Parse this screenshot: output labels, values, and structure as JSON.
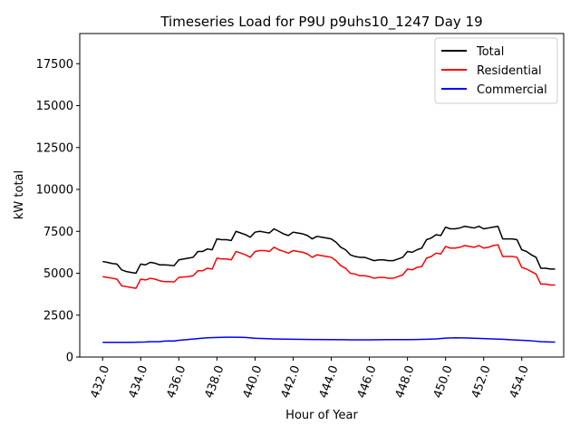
{
  "chart_data": {
    "type": "line",
    "title": "Timeseries Load for P9U p9uhs10_1247  Day 19",
    "xlabel": "Hour of Year",
    "ylabel": "kW total",
    "xlim": [
      430.8,
      456.2
    ],
    "ylim": [
      0,
      19300
    ],
    "xticks": [
      432,
      434,
      436,
      438,
      440,
      442,
      444,
      446,
      448,
      450,
      452,
      454
    ],
    "xtick_labels": [
      "432.0",
      "434.0",
      "436.0",
      "438.0",
      "440.0",
      "442.0",
      "444.0",
      "446.0",
      "448.0",
      "450.0",
      "452.0",
      "454.0"
    ],
    "yticks": [
      0,
      2500,
      5000,
      7500,
      10000,
      12500,
      15000,
      17500
    ],
    "ytick_labels": [
      "0",
      "2500",
      "5000",
      "7500",
      "10000",
      "12500",
      "15000",
      "17500"
    ],
    "legend_position": "top-right",
    "series": [
      {
        "name": "Total",
        "color": "#000000",
        "x": [
          432.0,
          432.25,
          432.5,
          432.75,
          433.0,
          433.25,
          433.5,
          433.75,
          434.0,
          434.25,
          434.5,
          434.75,
          435.0,
          435.25,
          435.5,
          435.75,
          436.0,
          436.25,
          436.5,
          436.75,
          437.0,
          437.25,
          437.5,
          437.75,
          438.0,
          438.25,
          438.5,
          438.75,
          439.0,
          439.25,
          439.5,
          439.75,
          440.0,
          440.25,
          440.5,
          440.75,
          441.0,
          441.25,
          441.5,
          441.75,
          442.0,
          442.25,
          442.5,
          442.75,
          443.0,
          443.25,
          443.5,
          443.75,
          444.0,
          444.25,
          444.5,
          444.75,
          445.0,
          445.25,
          445.5,
          445.75,
          446.0,
          446.25,
          446.5,
          446.75,
          447.0,
          447.25,
          447.5,
          447.75,
          448.0,
          448.25,
          448.5,
          448.75,
          449.0,
          449.25,
          449.5,
          449.75,
          450.0,
          450.25,
          450.5,
          450.75,
          451.0,
          451.25,
          451.5,
          451.75,
          452.0,
          452.25,
          452.5,
          452.75,
          453.0,
          453.25,
          453.5,
          453.75,
          454.0,
          454.25,
          454.5,
          454.75,
          455.0,
          455.25,
          455.5,
          455.75
        ],
        "values": [
          5700,
          5650,
          5580,
          5550,
          5200,
          5100,
          5050,
          5000,
          5550,
          5500,
          5650,
          5600,
          5500,
          5500,
          5480,
          5450,
          5800,
          5850,
          5900,
          5950,
          6300,
          6300,
          6450,
          6400,
          7050,
          7000,
          7000,
          6950,
          7500,
          7400,
          7300,
          7150,
          7450,
          7500,
          7450,
          7400,
          7650,
          7500,
          7350,
          7250,
          7450,
          7400,
          7350,
          7250,
          7050,
          7200,
          7150,
          7100,
          7050,
          6850,
          6550,
          6400,
          6100,
          6000,
          5950,
          5950,
          5850,
          5750,
          5800,
          5800,
          5750,
          5750,
          5850,
          5950,
          6300,
          6250,
          6400,
          6500,
          7000,
          7100,
          7300,
          7250,
          7750,
          7650,
          7650,
          7700,
          7800,
          7750,
          7700,
          7800,
          7650,
          7700,
          7750,
          7800,
          7050,
          7050,
          7050,
          7000,
          6400,
          6300,
          6100,
          5950,
          5300,
          5300,
          5250,
          5250
        ]
      },
      {
        "name": "Residential",
        "color": "#ff0000",
        "x": [
          432.0,
          432.25,
          432.5,
          432.75,
          433.0,
          433.25,
          433.5,
          433.75,
          434.0,
          434.25,
          434.5,
          434.75,
          435.0,
          435.25,
          435.5,
          435.75,
          436.0,
          436.25,
          436.5,
          436.75,
          437.0,
          437.25,
          437.5,
          437.75,
          438.0,
          438.25,
          438.5,
          438.75,
          439.0,
          439.25,
          439.5,
          439.75,
          440.0,
          440.25,
          440.5,
          440.75,
          441.0,
          441.25,
          441.5,
          441.75,
          442.0,
          442.25,
          442.5,
          442.75,
          443.0,
          443.25,
          443.5,
          443.75,
          444.0,
          444.25,
          444.5,
          444.75,
          445.0,
          445.25,
          445.5,
          445.75,
          446.0,
          446.25,
          446.5,
          446.75,
          447.0,
          447.25,
          447.5,
          447.75,
          448.0,
          448.25,
          448.5,
          448.75,
          449.0,
          449.25,
          449.5,
          449.75,
          450.0,
          450.25,
          450.5,
          450.75,
          451.0,
          451.25,
          451.5,
          451.75,
          452.0,
          452.25,
          452.5,
          452.75,
          453.0,
          453.25,
          453.5,
          453.75,
          454.0,
          454.25,
          454.5,
          454.75,
          455.0,
          455.25,
          455.5,
          455.75
        ],
        "values": [
          4800,
          4750,
          4700,
          4650,
          4250,
          4200,
          4150,
          4100,
          4650,
          4600,
          4700,
          4650,
          4550,
          4500,
          4500,
          4480,
          4750,
          4780,
          4800,
          4850,
          5150,
          5150,
          5300,
          5250,
          5900,
          5850,
          5850,
          5800,
          6300,
          6200,
          6100,
          5950,
          6300,
          6350,
          6350,
          6300,
          6550,
          6400,
          6300,
          6200,
          6350,
          6300,
          6250,
          6150,
          5950,
          6100,
          6050,
          6000,
          5950,
          5750,
          5450,
          5300,
          5000,
          4950,
          4850,
          4850,
          4800,
          4700,
          4750,
          4750,
          4700,
          4700,
          4800,
          4900,
          5250,
          5200,
          5350,
          5400,
          5900,
          6000,
          6200,
          6150,
          6600,
          6500,
          6500,
          6550,
          6650,
          6600,
          6550,
          6650,
          6500,
          6550,
          6650,
          6700,
          6000,
          6000,
          6000,
          5950,
          5350,
          5250,
          5100,
          4950,
          4350,
          4350,
          4300,
          4300
        ]
      },
      {
        "name": "Commercial",
        "color": "#0000ff",
        "x": [
          432.0,
          432.5,
          433.0,
          433.5,
          434.0,
          434.25,
          434.5,
          434.75,
          435.0,
          435.25,
          435.5,
          435.75,
          436.0,
          436.5,
          437.0,
          437.5,
          438.0,
          438.5,
          439.0,
          439.5,
          440.0,
          440.5,
          441.0,
          442.0,
          443.0,
          444.0,
          445.0,
          446.0,
          447.0,
          447.5,
          448.0,
          448.5,
          449.0,
          449.5,
          450.0,
          450.5,
          451.0,
          451.5,
          452.0,
          452.5,
          453.0,
          453.5,
          454.0,
          454.5,
          455.0,
          455.5,
          455.75
        ],
        "values": [
          880,
          880,
          880,
          880,
          890,
          900,
          920,
          920,
          920,
          950,
          960,
          960,
          1000,
          1050,
          1100,
          1150,
          1170,
          1180,
          1180,
          1170,
          1120,
          1100,
          1080,
          1060,
          1050,
          1040,
          1030,
          1030,
          1040,
          1040,
          1040,
          1050,
          1060,
          1080,
          1130,
          1150,
          1140,
          1120,
          1100,
          1080,
          1060,
          1030,
          1000,
          970,
          920,
          900,
          890
        ]
      }
    ]
  }
}
